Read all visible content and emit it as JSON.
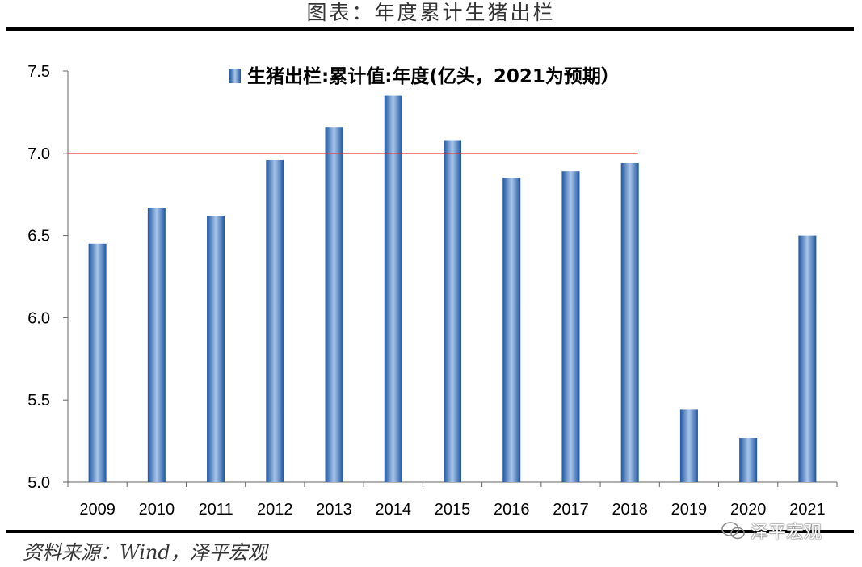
{
  "header": {
    "title": "图表：年度累计生猪出栏"
  },
  "footer": {
    "source": "资料来源：Wind，泽平宏观",
    "watermark": "泽平宏观",
    "watermark_icon": "wechat-icon"
  },
  "chart_data": {
    "type": "bar",
    "legend": "生猪出栏:累计值:年度(亿头，2021为预期）",
    "legend_placement": "top-center",
    "categories": [
      "2009",
      "2010",
      "2011",
      "2012",
      "2013",
      "2014",
      "2015",
      "2016",
      "2017",
      "2018",
      "2019",
      "2020",
      "2021"
    ],
    "values": [
      6.45,
      6.67,
      6.62,
      6.96,
      7.16,
      7.35,
      7.08,
      6.85,
      6.89,
      6.94,
      5.44,
      5.27,
      6.5
    ],
    "ylim": [
      5.0,
      7.5
    ],
    "yticks": [
      "5.0",
      "5.5",
      "6.0",
      "6.5",
      "7.0",
      "7.5"
    ],
    "reference_line": {
      "y": 7.0,
      "from": "2009",
      "to": "2018",
      "color": "#e8312f"
    },
    "bar_color": "#3f77bd",
    "grid": false
  }
}
